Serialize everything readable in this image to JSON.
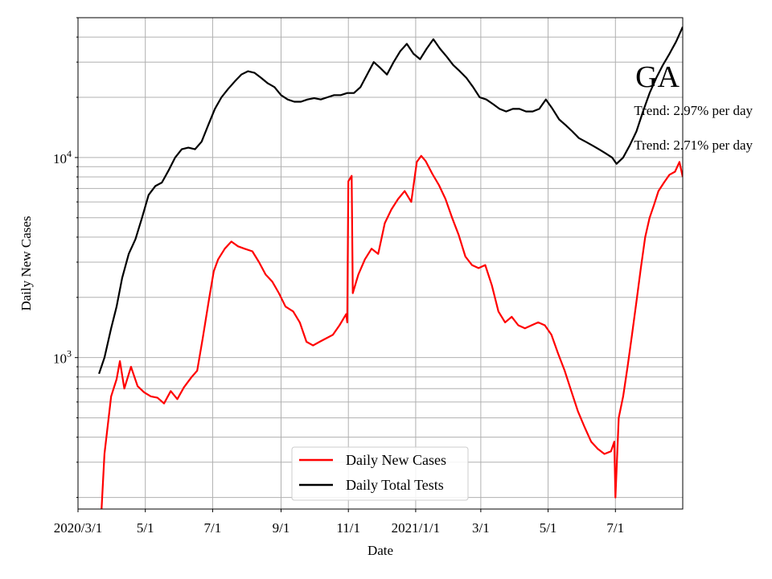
{
  "chart_data": {
    "type": "line",
    "title": "GA",
    "xlabel": "Date",
    "ylabel": "Daily New Cases",
    "yscale": "log",
    "ylim": [
      175,
      50000
    ],
    "xlim": [
      "2020-03-01",
      "2021-08-31"
    ],
    "grid": true,
    "grid_minor_y": true,
    "legend_position": "bottom-center",
    "x_ticks": [
      {
        "date": "2020-03-01",
        "label": "2020/3/1"
      },
      {
        "date": "2020-05-01",
        "label": "5/1"
      },
      {
        "date": "2020-07-01",
        "label": "7/1"
      },
      {
        "date": "2020-09-01",
        "label": "9/1"
      },
      {
        "date": "2020-11-01",
        "label": "11/1"
      },
      {
        "date": "2021-01-01",
        "label": "2021/1/1"
      },
      {
        "date": "2021-03-01",
        "label": "3/1"
      },
      {
        "date": "2021-05-01",
        "label": "5/1"
      },
      {
        "date": "2021-07-01",
        "label": "7/1"
      }
    ],
    "y_ticks": [
      {
        "value": 1000,
        "base": "10",
        "exp": "3"
      },
      {
        "value": 10000,
        "base": "10",
        "exp": "4"
      }
    ],
    "annotations": [
      {
        "text": "Trend: 2.97% per day"
      },
      {
        "text": "Trend: 2.71% per day"
      }
    ],
    "series": [
      {
        "name": "Daily New Cases",
        "color": "#ff0000",
        "points": [
          [
            "2020-03-20",
            100
          ],
          [
            "2020-03-25",
            330
          ],
          [
            "2020-03-31",
            640
          ],
          [
            "2020-04-05",
            780
          ],
          [
            "2020-04-08",
            960
          ],
          [
            "2020-04-12",
            700
          ],
          [
            "2020-04-18",
            900
          ],
          [
            "2020-04-24",
            720
          ],
          [
            "2020-04-30",
            670
          ],
          [
            "2020-05-06",
            640
          ],
          [
            "2020-05-12",
            630
          ],
          [
            "2020-05-18",
            590
          ],
          [
            "2020-05-24",
            680
          ],
          [
            "2020-05-30",
            620
          ],
          [
            "2020-06-05",
            710
          ],
          [
            "2020-06-12",
            800
          ],
          [
            "2020-06-17",
            860
          ],
          [
            "2020-06-22",
            1250
          ],
          [
            "2020-06-28",
            2000
          ],
          [
            "2020-07-02",
            2700
          ],
          [
            "2020-07-06",
            3100
          ],
          [
            "2020-07-12",
            3500
          ],
          [
            "2020-07-18",
            3800
          ],
          [
            "2020-07-24",
            3600
          ],
          [
            "2020-07-30",
            3500
          ],
          [
            "2020-08-06",
            3400
          ],
          [
            "2020-08-12",
            3000
          ],
          [
            "2020-08-18",
            2600
          ],
          [
            "2020-08-24",
            2400
          ],
          [
            "2020-08-30",
            2100
          ],
          [
            "2020-09-05",
            1800
          ],
          [
            "2020-09-12",
            1700
          ],
          [
            "2020-09-18",
            1500
          ],
          [
            "2020-09-24",
            1200
          ],
          [
            "2020-09-30",
            1150
          ],
          [
            "2020-10-06",
            1200
          ],
          [
            "2020-10-12",
            1250
          ],
          [
            "2020-10-18",
            1300
          ],
          [
            "2020-10-24",
            1450
          ],
          [
            "2020-10-30",
            1650
          ],
          [
            "2020-10-31",
            1500
          ],
          [
            "2020-11-01",
            7600
          ],
          [
            "2020-11-04",
            8100
          ],
          [
            "2020-11-05",
            2100
          ],
          [
            "2020-11-10",
            2600
          ],
          [
            "2020-11-16",
            3100
          ],
          [
            "2020-11-22",
            3500
          ],
          [
            "2020-11-28",
            3300
          ],
          [
            "2020-12-04",
            4700
          ],
          [
            "2020-12-10",
            5500
          ],
          [
            "2020-12-16",
            6200
          ],
          [
            "2020-12-22",
            6800
          ],
          [
            "2020-12-28",
            6000
          ],
          [
            "2021-01-02",
            9500
          ],
          [
            "2021-01-06",
            10200
          ],
          [
            "2021-01-10",
            9600
          ],
          [
            "2021-01-16",
            8300
          ],
          [
            "2021-01-22",
            7300
          ],
          [
            "2021-01-28",
            6200
          ],
          [
            "2021-02-03",
            5000
          ],
          [
            "2021-02-09",
            4100
          ],
          [
            "2021-02-15",
            3200
          ],
          [
            "2021-02-21",
            2900
          ],
          [
            "2021-02-27",
            2800
          ],
          [
            "2021-03-05",
            2900
          ],
          [
            "2021-03-11",
            2300
          ],
          [
            "2021-03-17",
            1700
          ],
          [
            "2021-03-23",
            1500
          ],
          [
            "2021-03-29",
            1600
          ],
          [
            "2021-04-04",
            1450
          ],
          [
            "2021-04-10",
            1400
          ],
          [
            "2021-04-16",
            1450
          ],
          [
            "2021-04-22",
            1500
          ],
          [
            "2021-04-28",
            1450
          ],
          [
            "2021-05-04",
            1300
          ],
          [
            "2021-05-10",
            1050
          ],
          [
            "2021-05-16",
            860
          ],
          [
            "2021-05-22",
            680
          ],
          [
            "2021-05-28",
            540
          ],
          [
            "2021-06-03",
            450
          ],
          [
            "2021-06-09",
            380
          ],
          [
            "2021-06-15",
            350
          ],
          [
            "2021-06-21",
            330
          ],
          [
            "2021-06-27",
            340
          ],
          [
            "2021-06-30",
            380
          ],
          [
            "2021-07-01",
            200
          ],
          [
            "2021-07-04",
            500
          ],
          [
            "2021-07-08",
            640
          ],
          [
            "2021-07-12",
            900
          ],
          [
            "2021-07-16",
            1300
          ],
          [
            "2021-07-20",
            1900
          ],
          [
            "2021-07-24",
            2800
          ],
          [
            "2021-07-28",
            4000
          ],
          [
            "2021-08-01",
            5000
          ],
          [
            "2021-08-05",
            5800
          ],
          [
            "2021-08-09",
            6800
          ],
          [
            "2021-08-14",
            7500
          ],
          [
            "2021-08-19",
            8200
          ],
          [
            "2021-08-24",
            8500
          ],
          [
            "2021-08-28",
            9500
          ],
          [
            "2021-08-31",
            8000
          ]
        ]
      },
      {
        "name": "Daily Total Tests",
        "color": "#000000",
        "points": [
          [
            "2020-03-20",
            830
          ],
          [
            "2020-03-25",
            1000
          ],
          [
            "2020-03-31",
            1400
          ],
          [
            "2020-04-05",
            1800
          ],
          [
            "2020-04-10",
            2500
          ],
          [
            "2020-04-16",
            3300
          ],
          [
            "2020-04-22",
            3900
          ],
          [
            "2020-04-28",
            5000
          ],
          [
            "2020-05-04",
            6500
          ],
          [
            "2020-05-10",
            7200
          ],
          [
            "2020-05-16",
            7500
          ],
          [
            "2020-05-22",
            8600
          ],
          [
            "2020-05-28",
            10000
          ],
          [
            "2020-06-03",
            11000
          ],
          [
            "2020-06-09",
            11200
          ],
          [
            "2020-06-15",
            11000
          ],
          [
            "2020-06-21",
            12000
          ],
          [
            "2020-06-27",
            14500
          ],
          [
            "2020-07-03",
            17500
          ],
          [
            "2020-07-09",
            20000
          ],
          [
            "2020-07-15",
            22000
          ],
          [
            "2020-07-21",
            24000
          ],
          [
            "2020-07-27",
            26000
          ],
          [
            "2020-08-02",
            27000
          ],
          [
            "2020-08-08",
            26500
          ],
          [
            "2020-08-14",
            25000
          ],
          [
            "2020-08-20",
            23500
          ],
          [
            "2020-08-26",
            22500
          ],
          [
            "2020-09-01",
            20500
          ],
          [
            "2020-09-07",
            19500
          ],
          [
            "2020-09-13",
            19000
          ],
          [
            "2020-09-19",
            19000
          ],
          [
            "2020-09-25",
            19500
          ],
          [
            "2020-10-01",
            19800
          ],
          [
            "2020-10-07",
            19500
          ],
          [
            "2020-10-13",
            20000
          ],
          [
            "2020-10-19",
            20500
          ],
          [
            "2020-10-25",
            20500
          ],
          [
            "2020-10-31",
            21000
          ],
          [
            "2020-11-06",
            21000
          ],
          [
            "2020-11-12",
            22500
          ],
          [
            "2020-11-18",
            26000
          ],
          [
            "2020-11-24",
            30000
          ],
          [
            "2020-11-30",
            28000
          ],
          [
            "2020-12-06",
            26000
          ],
          [
            "2020-12-12",
            30000
          ],
          [
            "2020-12-18",
            34000
          ],
          [
            "2020-12-24",
            37000
          ],
          [
            "2020-12-30",
            33000
          ],
          [
            "2021-01-05",
            31000
          ],
          [
            "2021-01-11",
            35000
          ],
          [
            "2021-01-17",
            39000
          ],
          [
            "2021-01-23",
            35000
          ],
          [
            "2021-01-29",
            32000
          ],
          [
            "2021-02-04",
            29000
          ],
          [
            "2021-02-10",
            27000
          ],
          [
            "2021-02-16",
            25000
          ],
          [
            "2021-02-22",
            22500
          ],
          [
            "2021-02-28",
            20000
          ],
          [
            "2021-03-06",
            19500
          ],
          [
            "2021-03-12",
            18500
          ],
          [
            "2021-03-18",
            17500
          ],
          [
            "2021-03-24",
            17000
          ],
          [
            "2021-03-30",
            17500
          ],
          [
            "2021-04-05",
            17500
          ],
          [
            "2021-04-11",
            17000
          ],
          [
            "2021-04-17",
            17000
          ],
          [
            "2021-04-23",
            17500
          ],
          [
            "2021-04-29",
            19500
          ],
          [
            "2021-05-05",
            17500
          ],
          [
            "2021-05-11",
            15500
          ],
          [
            "2021-05-17",
            14500
          ],
          [
            "2021-05-23",
            13500
          ],
          [
            "2021-05-29",
            12500
          ],
          [
            "2021-06-04",
            12000
          ],
          [
            "2021-06-10",
            11500
          ],
          [
            "2021-06-16",
            11000
          ],
          [
            "2021-06-22",
            10500
          ],
          [
            "2021-06-28",
            10000
          ],
          [
            "2021-07-02",
            9300
          ],
          [
            "2021-07-08",
            10000
          ],
          [
            "2021-07-14",
            11500
          ],
          [
            "2021-07-20",
            13500
          ],
          [
            "2021-07-26",
            17000
          ],
          [
            "2021-08-01",
            21000
          ],
          [
            "2021-08-07",
            25000
          ],
          [
            "2021-08-13",
            29000
          ],
          [
            "2021-08-19",
            33000
          ],
          [
            "2021-08-25",
            38000
          ],
          [
            "2021-08-31",
            45000
          ]
        ]
      }
    ]
  }
}
